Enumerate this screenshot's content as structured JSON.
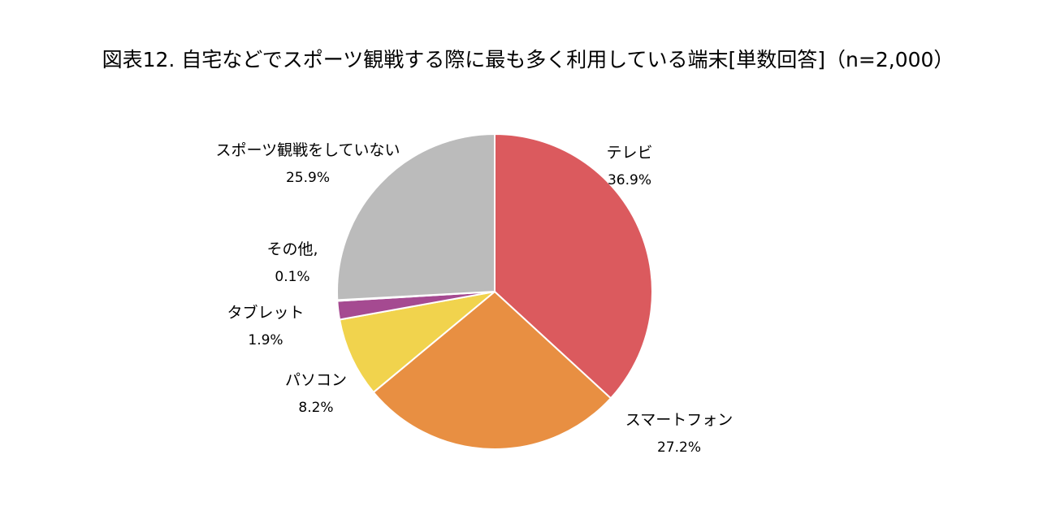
{
  "chart_data": {
    "type": "pie",
    "title": "図表12. 自宅などでスポーツ観戦する際に最も多く利用している端末[単数回答]（n=2,000）",
    "unit": "%",
    "slices": [
      {
        "label": "テレビ",
        "value": 36.9,
        "value_label": "36.9%",
        "color": "#db5a5e"
      },
      {
        "label": "スマートフォン",
        "value": 27.2,
        "value_label": "27.2%",
        "color": "#e88f42"
      },
      {
        "label": "パソコン",
        "value": 8.2,
        "value_label": "8.2%",
        "color": "#f1d34d"
      },
      {
        "label": "タブレット",
        "value": 1.9,
        "value_label": "1.9%",
        "color": "#a54a91"
      },
      {
        "label": "その他,",
        "value": 0.1,
        "value_label": "0.1%",
        "color": "#7a9cc6"
      },
      {
        "label": "スポーツ観戦をしていない",
        "value": 25.9,
        "value_label": "25.9%",
        "color": "#bbbbbb"
      }
    ],
    "start_angle": "12 o'clock",
    "direction": "clockwise",
    "legend": "none (labels beside slices)"
  }
}
